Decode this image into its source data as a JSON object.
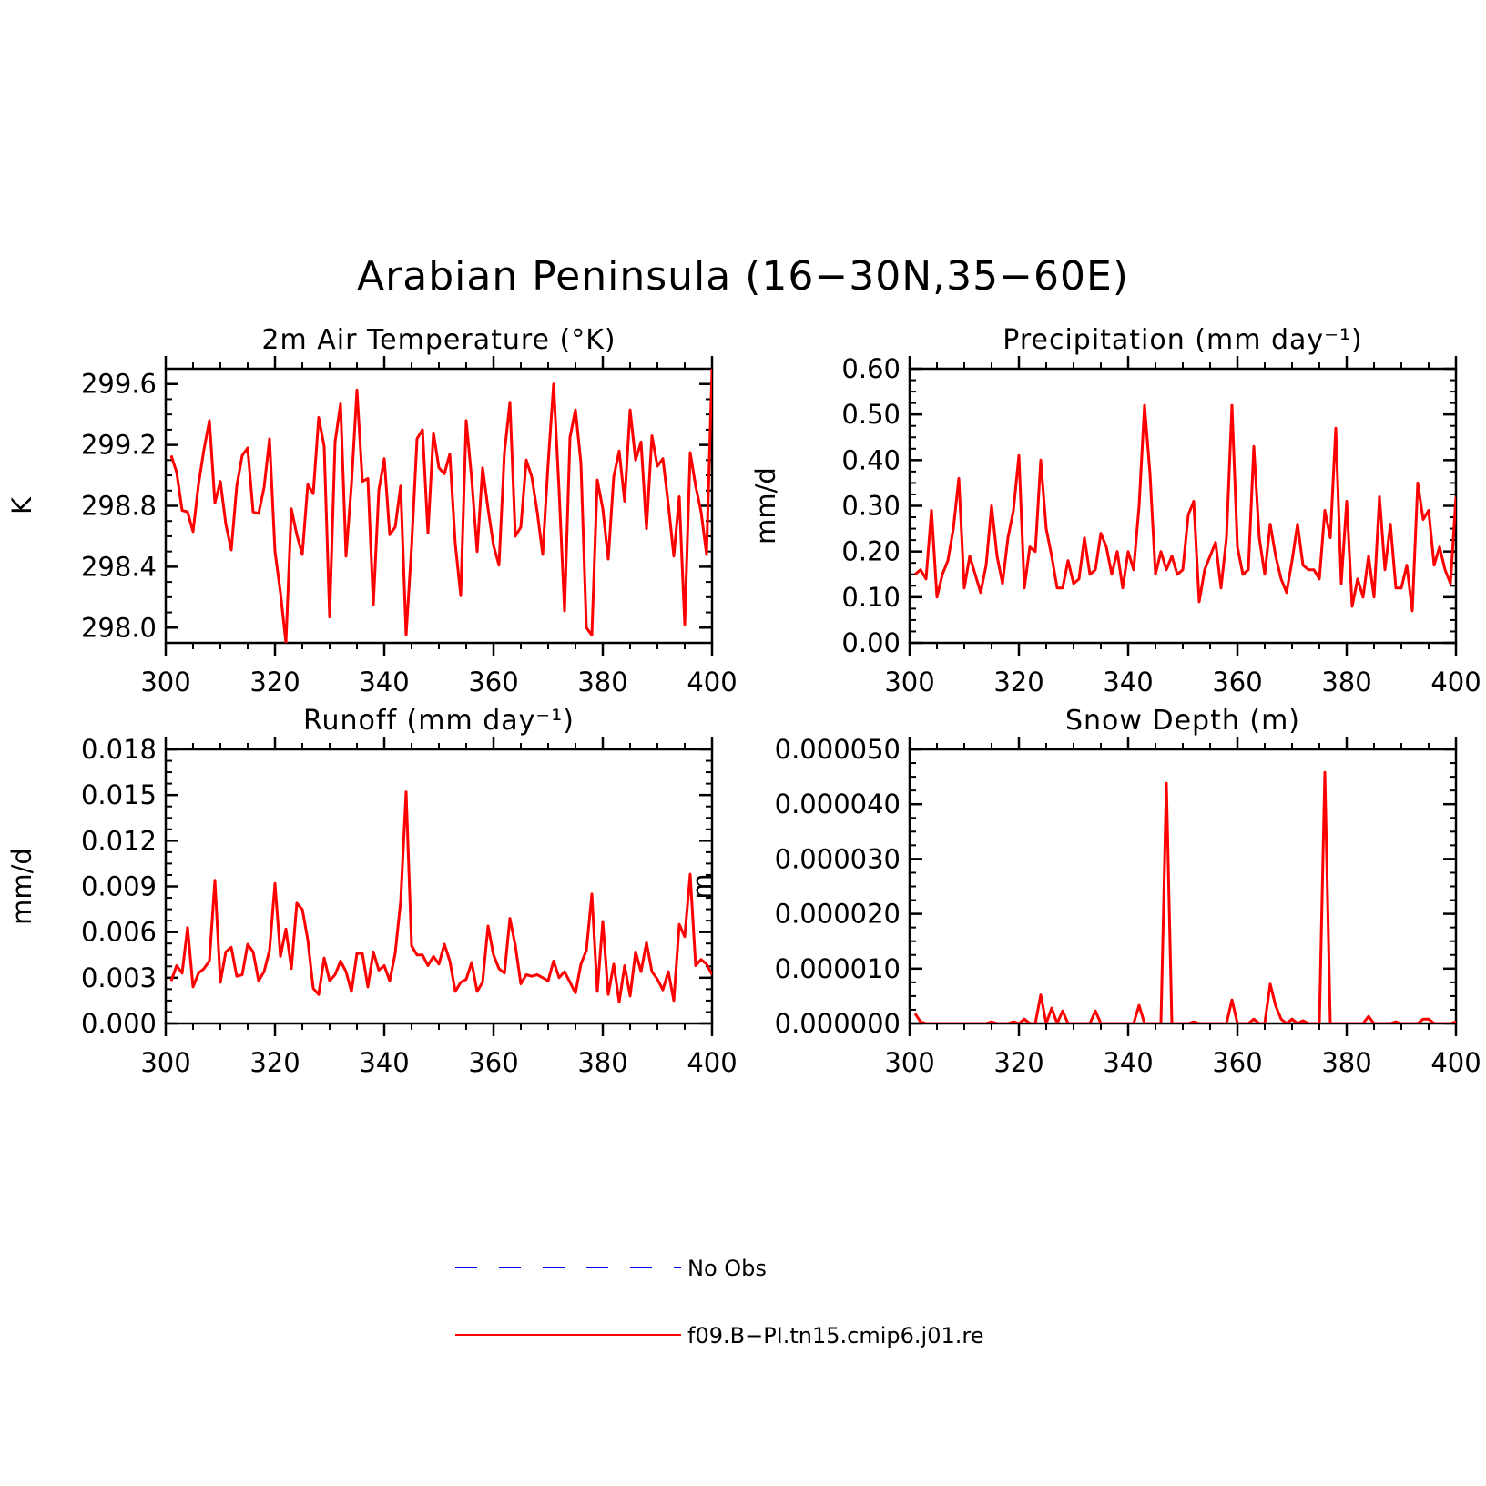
{
  "title": "Arabian Peninsula (16−30N,35−60E)",
  "colors": {
    "model": "#ff0000",
    "obs": "#0000ff"
  },
  "legend": [
    {
      "label": "No Obs",
      "color": "#0000ff",
      "style": "dashed"
    },
    {
      "label": "f09.B−PI.tn15.cmip6.j01.re",
      "color": "#ff0000",
      "style": "solid"
    }
  ],
  "chart_data": [
    {
      "type": "line",
      "title": "2m Air Temperature (°K)",
      "xlabel": "",
      "ylabel": "K",
      "xlim": [
        300,
        400
      ],
      "ylim": [
        297.9,
        299.7
      ],
      "xticks": [
        300,
        320,
        340,
        360,
        380,
        400
      ],
      "xtick_labels": [
        "300",
        "320",
        "340",
        "360",
        "380",
        "400"
      ],
      "yticks": [
        298.0,
        298.4,
        298.8,
        299.2,
        299.6
      ],
      "ytick_labels": [
        "298.0",
        "298.4",
        "298.8",
        "299.2",
        "299.6"
      ],
      "series": [
        {
          "x": [
            301,
            302,
            303,
            304,
            305,
            306,
            307,
            308,
            309,
            310,
            311,
            312,
            313,
            314,
            315,
            316,
            317,
            318,
            319,
            320,
            321,
            322,
            323,
            324,
            325,
            326,
            327,
            328,
            329,
            330,
            331,
            332,
            333,
            334,
            335,
            336,
            337,
            338,
            339,
            340,
            341,
            342,
            343,
            344,
            345,
            346,
            347,
            348,
            349,
            350,
            351,
            352,
            353,
            354,
            355,
            356,
            357,
            358,
            359,
            360,
            361,
            362,
            363,
            364,
            365,
            366,
            367,
            368,
            369,
            370,
            371,
            372,
            373,
            374,
            375,
            376,
            377,
            378,
            379,
            380,
            381,
            382,
            383,
            384,
            385,
            386,
            387,
            388,
            389,
            390,
            391,
            392,
            393,
            394,
            395,
            396,
            397,
            398,
            399,
            400
          ],
          "y": [
            299.13,
            299.02,
            298.77,
            298.76,
            298.63,
            298.94,
            299.17,
            299.36,
            298.82,
            298.96,
            298.68,
            298.51,
            298.93,
            299.13,
            299.18,
            298.76,
            298.75,
            298.92,
            299.24,
            298.5,
            298.23,
            297.9,
            298.78,
            298.61,
            298.48,
            298.94,
            298.88,
            299.38,
            299.19,
            298.07,
            299.22,
            299.47,
            298.47,
            298.94,
            299.56,
            298.96,
            298.98,
            298.15,
            298.9,
            299.11,
            298.61,
            298.66,
            298.93,
            297.95,
            298.53,
            299.24,
            299.3,
            298.62,
            299.28,
            299.05,
            299.01,
            299.14,
            298.55,
            298.21,
            299.36,
            298.98,
            298.5,
            299.05,
            298.78,
            298.54,
            298.41,
            299.15,
            299.48,
            298.6,
            298.66,
            299.1,
            298.99,
            298.76,
            298.48,
            299.08,
            299.6,
            298.9,
            298.11,
            299.25,
            299.43,
            299.08,
            298.0,
            297.95,
            298.97,
            298.78,
            298.45,
            298.99,
            299.16,
            298.83,
            299.43,
            299.1,
            299.22,
            298.65,
            299.26,
            299.06,
            299.11,
            298.81,
            298.47,
            298.86,
            298.02,
            299.15,
            298.93,
            298.76,
            298.48,
            299.7
          ]
        }
      ]
    },
    {
      "type": "line",
      "title": "Precipitation (mm day⁻¹)",
      "xlabel": "",
      "ylabel": "mm/d",
      "xlim": [
        300,
        400
      ],
      "ylim": [
        0.0,
        0.6
      ],
      "xticks": [
        300,
        320,
        340,
        360,
        380,
        400
      ],
      "xtick_labels": [
        "300",
        "320",
        "340",
        "360",
        "380",
        "400"
      ],
      "yticks": [
        0.0,
        0.1,
        0.2,
        0.3,
        0.4,
        0.5,
        0.6
      ],
      "ytick_labels": [
        "0.00",
        "0.10",
        "0.20",
        "0.30",
        "0.40",
        "0.50",
        "0.60"
      ],
      "series": [
        {
          "x": [
            301,
            302,
            303,
            304,
            305,
            306,
            307,
            308,
            309,
            310,
            311,
            312,
            313,
            314,
            315,
            316,
            317,
            318,
            319,
            320,
            321,
            322,
            323,
            324,
            325,
            326,
            327,
            328,
            329,
            330,
            331,
            332,
            333,
            334,
            335,
            336,
            337,
            338,
            339,
            340,
            341,
            342,
            343,
            344,
            345,
            346,
            347,
            348,
            349,
            350,
            351,
            352,
            353,
            354,
            355,
            356,
            357,
            358,
            359,
            360,
            361,
            362,
            363,
            364,
            365,
            366,
            367,
            368,
            369,
            370,
            371,
            372,
            373,
            374,
            375,
            376,
            377,
            378,
            379,
            380,
            381,
            382,
            383,
            384,
            385,
            386,
            387,
            388,
            389,
            390,
            391,
            392,
            393,
            394,
            395,
            396,
            397,
            398,
            399,
            400
          ],
          "y": [
            0.15,
            0.16,
            0.14,
            0.29,
            0.1,
            0.15,
            0.18,
            0.25,
            0.36,
            0.12,
            0.19,
            0.15,
            0.11,
            0.17,
            0.3,
            0.19,
            0.13,
            0.23,
            0.29,
            0.41,
            0.12,
            0.21,
            0.2,
            0.4,
            0.25,
            0.19,
            0.12,
            0.12,
            0.18,
            0.13,
            0.14,
            0.23,
            0.15,
            0.16,
            0.24,
            0.21,
            0.15,
            0.2,
            0.12,
            0.2,
            0.16,
            0.3,
            0.52,
            0.37,
            0.15,
            0.2,
            0.16,
            0.19,
            0.15,
            0.16,
            0.28,
            0.31,
            0.09,
            0.16,
            0.19,
            0.22,
            0.12,
            0.23,
            0.52,
            0.21,
            0.15,
            0.16,
            0.43,
            0.23,
            0.15,
            0.26,
            0.19,
            0.14,
            0.11,
            0.18,
            0.26,
            0.17,
            0.16,
            0.16,
            0.14,
            0.29,
            0.23,
            0.47,
            0.13,
            0.31,
            0.08,
            0.14,
            0.1,
            0.19,
            0.1,
            0.32,
            0.16,
            0.26,
            0.12,
            0.12,
            0.17,
            0.07,
            0.35,
            0.27,
            0.29,
            0.17,
            0.21,
            0.16,
            0.13,
            0.32
          ]
        }
      ]
    },
    {
      "type": "line",
      "title": "Runoff (mm day⁻¹)",
      "xlabel": "",
      "ylabel": "mm/d",
      "xlim": [
        300,
        400
      ],
      "ylim": [
        0.0,
        0.018
      ],
      "xticks": [
        300,
        320,
        340,
        360,
        380,
        400
      ],
      "xtick_labels": [
        "300",
        "320",
        "340",
        "360",
        "380",
        "400"
      ],
      "yticks": [
        0.0,
        0.003,
        0.006,
        0.009,
        0.012,
        0.015,
        0.018
      ],
      "ytick_labels": [
        "0.000",
        "0.003",
        "0.006",
        "0.009",
        "0.012",
        "0.015",
        "0.018"
      ],
      "series": [
        {
          "x": [
            301,
            302,
            303,
            304,
            305,
            306,
            307,
            308,
            309,
            310,
            311,
            312,
            313,
            314,
            315,
            316,
            317,
            318,
            319,
            320,
            321,
            322,
            323,
            324,
            325,
            326,
            327,
            328,
            329,
            330,
            331,
            332,
            333,
            334,
            335,
            336,
            337,
            338,
            339,
            340,
            341,
            342,
            343,
            344,
            345,
            346,
            347,
            348,
            349,
            350,
            351,
            352,
            353,
            354,
            355,
            356,
            357,
            358,
            359,
            360,
            361,
            362,
            363,
            364,
            365,
            366,
            367,
            368,
            369,
            370,
            371,
            372,
            373,
            374,
            375,
            376,
            377,
            378,
            379,
            380,
            381,
            382,
            383,
            384,
            385,
            386,
            387,
            388,
            389,
            390,
            391,
            392,
            393,
            394,
            395,
            396,
            397,
            398,
            399,
            400
          ],
          "y": [
            0.0028,
            0.0038,
            0.0033,
            0.0063,
            0.0024,
            0.0033,
            0.0036,
            0.0041,
            0.0094,
            0.0027,
            0.0047,
            0.005,
            0.0031,
            0.0032,
            0.0052,
            0.0047,
            0.0028,
            0.0034,
            0.0048,
            0.0092,
            0.0044,
            0.0062,
            0.0036,
            0.0079,
            0.0075,
            0.0055,
            0.0023,
            0.0019,
            0.0043,
            0.0028,
            0.0032,
            0.0041,
            0.0034,
            0.0021,
            0.0046,
            0.0046,
            0.0024,
            0.0047,
            0.0035,
            0.0038,
            0.0028,
            0.0046,
            0.008,
            0.0152,
            0.0051,
            0.0045,
            0.0045,
            0.0038,
            0.0044,
            0.0039,
            0.0052,
            0.0041,
            0.0021,
            0.0027,
            0.0029,
            0.004,
            0.0021,
            0.0027,
            0.0064,
            0.0045,
            0.0036,
            0.0033,
            0.0069,
            0.0051,
            0.0026,
            0.0032,
            0.0031,
            0.0032,
            0.003,
            0.0028,
            0.0041,
            0.003,
            0.0034,
            0.0027,
            0.002,
            0.0039,
            0.0048,
            0.0085,
            0.0021,
            0.0067,
            0.0019,
            0.0039,
            0.0014,
            0.0038,
            0.0018,
            0.0047,
            0.0034,
            0.0053,
            0.0034,
            0.0029,
            0.0022,
            0.0034,
            0.0015,
            0.0065,
            0.0057,
            0.0098,
            0.0038,
            0.0042,
            0.0039,
            0.0032
          ]
        }
      ]
    },
    {
      "type": "line",
      "title": "Snow Depth (m)",
      "xlabel": "",
      "ylabel": "m",
      "xlim": [
        300,
        400
      ],
      "ylim": [
        0.0,
        5e-05
      ],
      "xticks": [
        300,
        320,
        340,
        360,
        380,
        400
      ],
      "xtick_labels": [
        "300",
        "320",
        "340",
        "360",
        "380",
        "400"
      ],
      "yticks": [
        0.0,
        1e-05,
        2e-05,
        3e-05,
        4e-05,
        5e-05
      ],
      "ytick_labels": [
        "0.000000",
        "0.000010",
        "0.000020",
        "0.000030",
        "0.000040",
        "0.000050"
      ],
      "series": [
        {
          "x": [
            301,
            302,
            303,
            304,
            305,
            306,
            307,
            308,
            309,
            310,
            311,
            312,
            313,
            314,
            315,
            316,
            317,
            318,
            319,
            320,
            321,
            322,
            323,
            324,
            325,
            326,
            327,
            328,
            329,
            330,
            331,
            332,
            333,
            334,
            335,
            336,
            337,
            338,
            339,
            340,
            341,
            342,
            343,
            344,
            345,
            346,
            347,
            348,
            349,
            350,
            351,
            352,
            353,
            354,
            355,
            356,
            357,
            358,
            359,
            360,
            361,
            362,
            363,
            364,
            365,
            366,
            367,
            368,
            369,
            370,
            371,
            372,
            373,
            374,
            375,
            376,
            377,
            378,
            379,
            380,
            381,
            382,
            383,
            384,
            385,
            386,
            387,
            388,
            389,
            390,
            391,
            392,
            393,
            394,
            395,
            396,
            397,
            398,
            399,
            400
          ],
          "y": [
            1.8e-06,
            3e-07,
            0,
            0,
            0,
            0,
            0,
            0,
            0,
            0,
            0,
            0,
            0,
            0,
            3e-07,
            0,
            0,
            0,
            3e-07,
            0,
            8e-07,
            0,
            0,
            5.2e-06,
            0,
            2.8e-06,
            0,
            2.3e-06,
            0,
            0,
            0,
            0,
            0,
            2.3e-06,
            0,
            0,
            0,
            0,
            0,
            0,
            0,
            3.3e-06,
            0,
            0,
            0,
            0,
            4.38e-05,
            0,
            0,
            0,
            0,
            3e-07,
            0,
            0,
            0,
            0,
            0,
            0,
            4.3e-06,
            0,
            0,
            0,
            8e-07,
            0,
            0,
            7.2e-06,
            3.2e-06,
            8e-07,
            0,
            8e-07,
            0,
            5e-07,
            0,
            0,
            0,
            4.58e-05,
            0,
            0,
            0,
            0,
            0,
            0,
            0,
            1.3e-06,
            0,
            0,
            0,
            0,
            3e-07,
            0,
            0,
            0,
            0,
            8e-07,
            8e-07,
            0,
            0,
            0,
            0,
            3e-07
          ]
        }
      ]
    }
  ]
}
